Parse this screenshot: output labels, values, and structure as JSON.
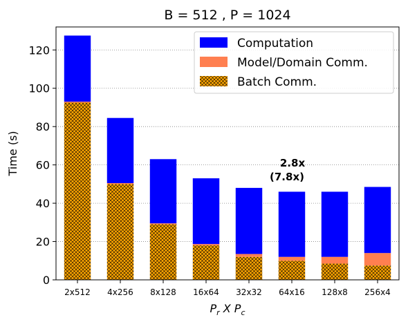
{
  "chart_data": {
    "type": "bar",
    "stacked": true,
    "title": "B = 512 ,  P = 1024",
    "xlabel": {
      "base1": "P",
      "sub1": "r",
      "mid": " X ",
      "base2": "P",
      "sub2": "c"
    },
    "ylabel": "Time (s)",
    "ylim": [
      0,
      132
    ],
    "yticks": [
      0,
      20,
      40,
      60,
      80,
      100,
      120
    ],
    "grid": "y-dotted",
    "legend_position": "top-right",
    "categories": [
      "2x512",
      "4x256",
      "8x128",
      "16x64",
      "32x32",
      "64x16",
      "128x8",
      "256x4"
    ],
    "series": [
      {
        "name": "Batch Comm.",
        "color": "#ffa500",
        "hatch": true,
        "values": [
          92.5,
          50,
          29,
          18,
          12,
          10,
          8.5,
          7.5
        ]
      },
      {
        "name": "Model/Domain Comm.",
        "color": "#ff7f50",
        "values": [
          0.5,
          0.5,
          0.5,
          0.7,
          1.5,
          2,
          3.5,
          6.5
        ]
      },
      {
        "name": "Computation",
        "color": "#0000ff",
        "values": [
          34.5,
          34,
          33.5,
          34.3,
          34.5,
          34,
          34,
          34.5
        ]
      }
    ],
    "legend_order": [
      "Computation",
      "Model/Domain Comm.",
      "Batch Comm."
    ],
    "annotation": {
      "line1": "2.8x",
      "line2": "(7.8x)",
      "category": "64x16"
    }
  }
}
